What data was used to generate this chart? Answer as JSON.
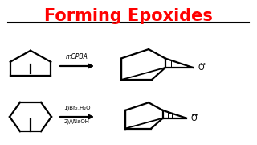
{
  "title": "Forming Epoxides",
  "title_color": "#ff0000",
  "title_fontsize": 15,
  "bg_color": "#ffffff",
  "line_color": "#000000",
  "reaction1_reagent": "mCPBA",
  "reaction2_reagent1": "1)Br₂,H₂O",
  "reaction2_reagent2": "2)/\\NaOH",
  "lw": 1.6
}
